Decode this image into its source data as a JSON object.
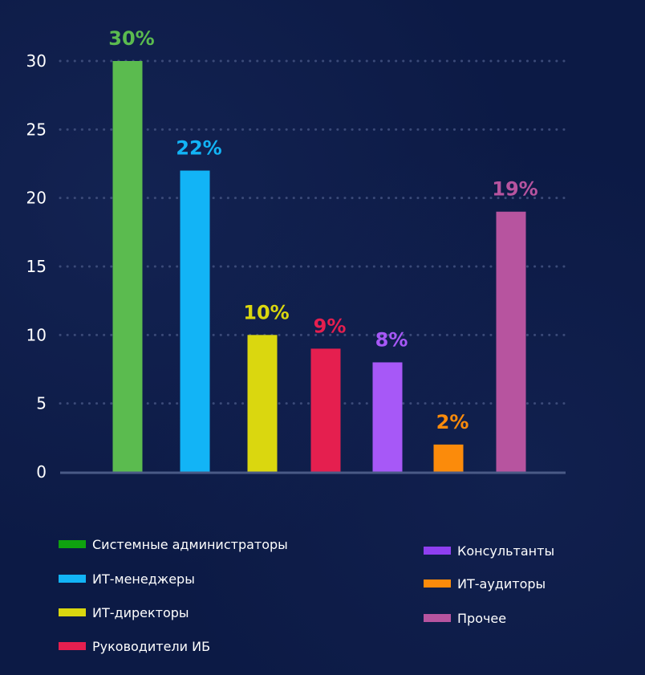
{
  "chart_data": {
    "type": "bar",
    "categories": [
      "Системные администраторы",
      "ИТ-менеджеры",
      "ИТ-директоры",
      "Руководители ИБ",
      "Консультанты",
      "ИТ-аудиторы",
      "Прочее"
    ],
    "values": [
      30,
      22,
      10,
      9,
      8,
      2,
      19
    ],
    "data_labels": [
      "30%",
      "22%",
      "10%",
      "9%",
      "8%",
      "2%",
      "19%"
    ],
    "bar_colors": [
      "#5bbb4f",
      "#12b4f6",
      "#dad70f",
      "#e51f4f",
      "#a758f7",
      "#fb8b0b",
      "#b7549f"
    ],
    "legend_colors": [
      "#0fa20f",
      "#12b4f6",
      "#dad70f",
      "#e51f4f",
      "#8f3ff0",
      "#fb8b0b",
      "#b7549f"
    ],
    "yticks": [
      "0",
      "5",
      "10",
      "15",
      "20",
      "25",
      "30"
    ],
    "ylim": [
      0,
      30
    ],
    "grid": "horizontal dotted",
    "legend_position": "bottom, two columns",
    "title": "",
    "xlabel": "",
    "ylabel": ""
  },
  "colors": {
    "background": "#0c1a45",
    "grid": "#3b4a78",
    "axis": "#4a5a86",
    "tick_text": "#ffffff"
  }
}
